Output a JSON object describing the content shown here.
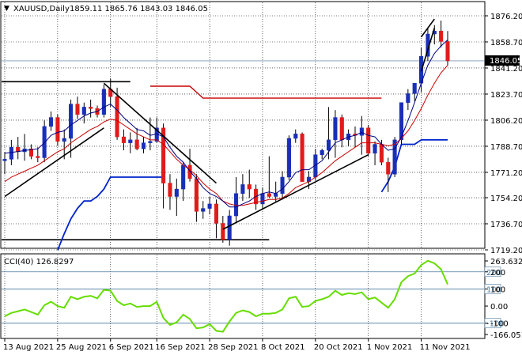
{
  "header": {
    "symbol": "XAUUSD,Daily",
    "ohlc": "1859.11 1865.76 1843.03 1846.05"
  },
  "price_axis": {
    "labels": [
      "1876.20",
      "1858.70",
      "1841.20",
      "1823.70",
      "1806.20",
      "1788.70",
      "1771.20",
      "1754.20",
      "1736.70",
      "1719.20"
    ],
    "current_label": "1846.05"
  },
  "cci_panel": {
    "label": "CCI(40) 126.8297",
    "axis_labels": [
      "263.6326",
      "200",
      "100",
      "0.00",
      "-100",
      "-166.051"
    ],
    "level_lines": [
      200,
      100,
      -100
    ],
    "level_labels": [
      "200",
      "100",
      "-100"
    ]
  },
  "time_axis": {
    "labels": [
      "13 Aug 2021",
      "25 Aug 2021",
      "6 Sep 2021",
      "16 Sep 2021",
      "28 Sep 2021",
      "8 Oct 2021",
      "20 Oct 2021",
      "1 Nov 2021",
      "11 Nov 2021"
    ]
  },
  "colors": {
    "bull": "#1a2fb8",
    "bear": "#e01b1b",
    "sma_fast": "#000080",
    "sma_slow": "#cc0000",
    "channel": "#0022cc",
    "resistance": "#cc0000",
    "cci": "#66dd00",
    "trendline": "#000000",
    "level_line": "#4a7aa0"
  },
  "chart_data": {
    "type": "candlestick",
    "title": "XAUUSD,Daily",
    "x": [
      "13 Aug",
      "16 Aug",
      "17 Aug",
      "18 Aug",
      "19 Aug",
      "20 Aug",
      "23 Aug",
      "24 Aug",
      "25 Aug",
      "26 Aug",
      "27 Aug",
      "30 Aug",
      "31 Aug",
      "1 Sep",
      "2 Sep",
      "3 Sep",
      "6 Sep",
      "7 Sep",
      "8 Sep",
      "9 Sep",
      "10 Sep",
      "13 Sep",
      "14 Sep",
      "15 Sep",
      "16 Sep",
      "17 Sep",
      "20 Sep",
      "21 Sep",
      "22 Sep",
      "23 Sep",
      "24 Sep",
      "27 Sep",
      "28 Sep",
      "29 Sep",
      "30 Sep",
      "1 Oct",
      "4 Oct",
      "5 Oct",
      "6 Oct",
      "7 Oct",
      "8 Oct",
      "11 Oct",
      "12 Oct",
      "13 Oct",
      "14 Oct",
      "15 Oct",
      "18 Oct",
      "19 Oct",
      "20 Oct",
      "21 Oct",
      "22 Oct",
      "25 Oct",
      "26 Oct",
      "27 Oct",
      "28 Oct",
      "29 Oct",
      "1 Nov",
      "2 Nov",
      "3 Nov",
      "4 Nov",
      "5 Nov",
      "8 Nov",
      "9 Nov",
      "10 Nov",
      "11 Nov",
      "12 Nov",
      "15 Nov",
      "16 Nov"
    ],
    "open": [
      1779.0,
      1780.0,
      1788.0,
      1785.0,
      1787.0,
      1782.0,
      1781.0,
      1802.0,
      1808.0,
      1792.0,
      1794.0,
      1817.0,
      1810.0,
      1815.0,
      1814.0,
      1810.0,
      1827.0,
      1822.0,
      1795.0,
      1791.0,
      1793.0,
      1787.0,
      1791.0,
      1792.0,
      1801.0,
      1764.0,
      1755.0,
      1760.0,
      1776.0,
      1767.0,
      1745.0,
      1747.0,
      1750.0,
      1737.0,
      1726.0,
      1742.0,
      1757.0,
      1763.0,
      1760.0,
      1750.0,
      1757.0,
      1755.0,
      1757.0,
      1768.0,
      1794.0,
      1797.0,
      1765.0,
      1768.0,
      1783.0,
      1786.0,
      1793.0,
      1808.0,
      1793.0,
      1797.0,
      1796.0,
      1801.0,
      1784.0,
      1790.0,
      1778.0,
      1770.0,
      1793.0,
      1818.0,
      1824.0,
      1831.0,
      1849.0,
      1864.0,
      1866.0,
      1859.0
    ],
    "high": [
      1785.0,
      1793.0,
      1795.0,
      1797.0,
      1790.0,
      1788.0,
      1806.0,
      1812.0,
      1810.0,
      1800.0,
      1820.0,
      1822.0,
      1818.0,
      1820.0,
      1816.0,
      1830.0,
      1834.0,
      1828.0,
      1800.0,
      1798.0,
      1801.0,
      1795.0,
      1808.0,
      1808.0,
      1804.0,
      1770.0,
      1767.0,
      1778.0,
      1787.0,
      1770.0,
      1752.0,
      1755.0,
      1753.0,
      1742.0,
      1746.0,
      1768.0,
      1770.0,
      1773.0,
      1763.0,
      1761.0,
      1782.0,
      1765.0,
      1772.0,
      1796.0,
      1800.0,
      1798.0,
      1772.0,
      1787.0,
      1787.0,
      1815.0,
      1813.0,
      1810.0,
      1800.0,
      1802.0,
      1809.0,
      1803.0,
      1792.0,
      1793.0,
      1781.0,
      1795.0,
      1818.0,
      1827.0,
      1830.0,
      1855.0,
      1868.0,
      1870.0,
      1873.0,
      1866.0
    ],
    "low": [
      1770.0,
      1776.0,
      1780.0,
      1779.0,
      1780.0,
      1778.0,
      1778.0,
      1799.0,
      1789.0,
      1780.0,
      1781.0,
      1807.0,
      1804.0,
      1808.0,
      1808.0,
      1808.0,
      1815.0,
      1793.0,
      1786.0,
      1784.0,
      1786.0,
      1784.0,
      1786.0,
      1791.0,
      1747.0,
      1746.0,
      1742.0,
      1752.0,
      1765.0,
      1738.0,
      1740.0,
      1743.0,
      1727.0,
      1724.0,
      1722.0,
      1738.0,
      1752.0,
      1754.0,
      1746.0,
      1746.0,
      1754.0,
      1751.0,
      1753.0,
      1766.0,
      1791.0,
      1765.0,
      1760.0,
      1766.0,
      1780.0,
      1780.0,
      1781.0,
      1788.0,
      1789.0,
      1788.0,
      1783.0,
      1782.0,
      1776.0,
      1776.0,
      1758.0,
      1768.0,
      1790.0,
      1813.0,
      1819.0,
      1825.0,
      1846.0,
      1857.0,
      1855.0,
      1843.0
    ],
    "close": [
      1780.0,
      1788.0,
      1785.0,
      1787.0,
      1782.0,
      1781.0,
      1802.0,
      1808.0,
      1792.0,
      1794.0,
      1817.0,
      1810.0,
      1815.0,
      1814.0,
      1810.0,
      1827.0,
      1822.0,
      1795.0,
      1791.0,
      1793.0,
      1787.0,
      1791.0,
      1792.0,
      1801.0,
      1764.0,
      1755.0,
      1760.0,
      1776.0,
      1767.0,
      1745.0,
      1747.0,
      1750.0,
      1737.0,
      1726.0,
      1742.0,
      1757.0,
      1763.0,
      1760.0,
      1750.0,
      1757.0,
      1755.0,
      1757.0,
      1768.0,
      1794.0,
      1797.0,
      1765.0,
      1768.0,
      1783.0,
      1786.0,
      1793.0,
      1808.0,
      1793.0,
      1797.0,
      1796.0,
      1801.0,
      1784.0,
      1790.0,
      1778.0,
      1770.0,
      1793.0,
      1818.0,
      1824.0,
      1831.0,
      1849.0,
      1864.0,
      1866.0,
      1859.0,
      1846.0
    ],
    "sma_fast": [
      1784.0,
      1784.6,
      1785.2,
      1785.8,
      1786.4,
      1787.0,
      1791.0,
      1796.0,
      1798.0,
      1799.0,
      1803.0,
      1806.0,
      1809.0,
      1811.0,
      1812.0,
      1815.0,
      1817.0,
      1813.0,
      1808.0,
      1804.0,
      1800.0,
      1799.0,
      1796.0,
      1797.0,
      1795.0,
      1788.0,
      1782.0,
      1778.0,
      1772.0,
      1767.0,
      1761.0,
      1757.0,
      1755.0,
      1752.0,
      1748.0,
      1748.0,
      1750.0,
      1752.0,
      1755.0,
      1757.0,
      1758.0,
      1757.0,
      1760.0,
      1765.0,
      1771.0,
      1773.0,
      1773.0,
      1776.0,
      1779.0,
      1785.0,
      1791.0,
      1793.0,
      1795.0,
      1796.0,
      1798.0,
      1796.0,
      1795.0,
      1790.0,
      1786.0,
      1787.0,
      1795.0,
      1806.0,
      1818.0,
      1831.0,
      1843.0,
      1851.0,
      1856.0,
      1860.0
    ],
    "sma_slow": [
      1765.0,
      1768.0,
      1770.0,
      1772.0,
      1774.0,
      1776.0,
      1779.0,
      1782.0,
      1785.0,
      1787.0,
      1791.0,
      1794.0,
      1797.0,
      1800.0,
      1802.0,
      1805.0,
      1807.0,
      1806.0,
      1803.0,
      1800.0,
      1797.0,
      1795.0,
      1793.0,
      1793.0,
      1790.0,
      1785.0,
      1780.0,
      1776.0,
      1773.0,
      1769.0,
      1764.0,
      1760.0,
      1757.0,
      1752.0,
      1750.0,
      1749.0,
      1749.0,
      1750.0,
      1751.0,
      1752.0,
      1753.0,
      1753.0,
      1754.0,
      1757.0,
      1761.0,
      1763.0,
      1765.0,
      1768.0,
      1771.0,
      1775.0,
      1779.0,
      1782.0,
      1785.0,
      1788.0,
      1791.0,
      1791.0,
      1791.0,
      1790.0,
      1789.0,
      1790.0,
      1794.0,
      1799.0,
      1806.0,
      1814.0,
      1823.0,
      1831.0,
      1838.0,
      1843.0
    ],
    "channel_upper": [
      null,
      null,
      null,
      null,
      null,
      null,
      null,
      null,
      null,
      null,
      null,
      null,
      null,
      null,
      null,
      null,
      null,
      null,
      null,
      null,
      null,
      null,
      null,
      null,
      null,
      null,
      null,
      null,
      null,
      null,
      null,
      null,
      null,
      null,
      null,
      null,
      null,
      null,
      null,
      null,
      null,
      null,
      null,
      null,
      null,
      null,
      null,
      null,
      null,
      null,
      null,
      null,
      null,
      null,
      null,
      null,
      null,
      1758,
      1765,
      1775,
      1790,
      1790,
      1790,
      1793,
      1793,
      1793,
      1793,
      1793
    ],
    "channel_lower": [
      null,
      null,
      null,
      null,
      null,
      null,
      null,
      null,
      1719,
      1730,
      1740,
      1747,
      1752,
      1752,
      1755,
      1760,
      1768,
      1768,
      1768,
      1768,
      1768,
      1768,
      1768,
      1768,
      1768,
      null,
      null,
      null,
      null,
      null,
      null,
      null,
      null,
      null,
      null,
      null,
      null,
      null,
      null,
      null,
      null,
      null,
      null,
      null,
      null,
      null,
      null,
      null,
      null,
      null,
      null,
      null,
      null,
      null,
      null,
      null,
      null,
      null,
      null,
      null,
      null,
      null,
      null,
      null,
      null,
      null,
      null,
      null
    ],
    "resistance": [
      null,
      null,
      null,
      null,
      null,
      null,
      null,
      null,
      null,
      null,
      null,
      null,
      null,
      null,
      null,
      null,
      null,
      null,
      null,
      null,
      null,
      null,
      1829,
      1829,
      1829,
      1829,
      1829,
      1829,
      1829,
      1825,
      1821,
      1821,
      1821,
      1821,
      1821,
      1821,
      1821,
      1821,
      1821,
      1821,
      1821,
      1821,
      1821,
      1821,
      1821,
      1821,
      1821,
      1821,
      1821,
      1821,
      1821,
      1821,
      1821,
      1821,
      1821,
      1821,
      1821,
      1821,
      null,
      null,
      null,
      null,
      null,
      null,
      null,
      null,
      null,
      null
    ],
    "cci": [
      -60,
      -40,
      -30,
      -20,
      -35,
      -50,
      5,
      25,
      0,
      -10,
      55,
      40,
      55,
      60,
      45,
      95,
      90,
      30,
      5,
      15,
      -5,
      0,
      0,
      25,
      -70,
      -110,
      -95,
      -50,
      -75,
      -130,
      -125,
      -105,
      -145,
      -150,
      -90,
      -40,
      -25,
      -35,
      -60,
      -45,
      -45,
      -40,
      -20,
      45,
      55,
      -5,
      0,
      30,
      40,
      55,
      90,
      65,
      75,
      70,
      80,
      40,
      50,
      20,
      -10,
      40,
      140,
      175,
      190,
      240,
      265,
      250,
      215,
      127
    ],
    "trendlines": [
      {
        "from": [
          "13 Aug",
          1755
        ],
        "to": [
          "3 Sep",
          1801
        ]
      },
      {
        "from": [
          "3 Sep",
          1831
        ],
        "to": [
          "28 Sep",
          1764
        ]
      },
      {
        "from": [
          "29 Sep",
          1733
        ],
        "to": [
          "29 Oct",
          1783
        ]
      },
      {
        "from": [
          "10 Nov",
          1839
        ],
        "to": [
          "12 Nov",
          1868
        ]
      },
      {
        "from": [
          "10 Nov",
          1862
        ],
        "to": [
          "12 Nov",
          1874
        ]
      }
    ],
    "horizontal_lines": [
      {
        "from": "13 Aug",
        "to": "9 Sep",
        "y": 1832
      },
      {
        "from": "13 Aug",
        "to": "8 Oct",
        "y": 1726
      }
    ],
    "ylim": [
      1719.2,
      1880.0
    ],
    "cci_ylim": [
      -166.051,
      263.6326
    ]
  }
}
